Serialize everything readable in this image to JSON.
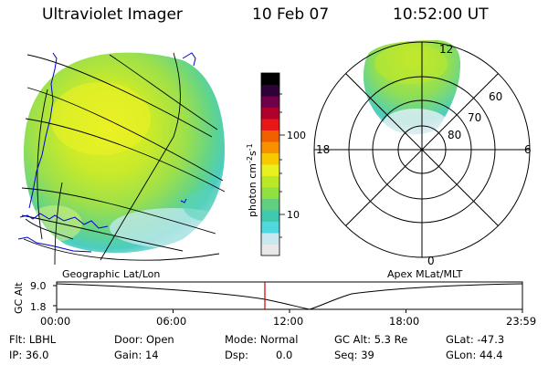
{
  "header": {
    "instrument": "Ultraviolet Imager",
    "date": "10 Feb 07",
    "time": "10:52:00 UT"
  },
  "colorbar": {
    "unit_label": "photon cm",
    "unit_exp_1": "-2",
    "unit_s": "s",
    "unit_exp_2": "-1",
    "ticks": [
      "100",
      "10"
    ],
    "colors": [
      "#e8e8e8",
      "#c8e8f0",
      "#50d8e0",
      "#40c8b0",
      "#60d080",
      "#90e040",
      "#b8e828",
      "#e8f020",
      "#f8c800",
      "#f89000",
      "#f06000",
      "#e81818",
      "#b0002c",
      "#70004a",
      "#300038",
      "#000000"
    ]
  },
  "left_panel": {
    "label": "Geographic Lat/Lon"
  },
  "right_panel": {
    "label": "Apex MLat/MLT",
    "mlt_labels": {
      "top": "12",
      "left": "18",
      "right": "6",
      "bottom": "0"
    },
    "mlat_labels": [
      "60",
      "70",
      "80"
    ]
  },
  "altitude_plot": {
    "ylabel": "GC Alt",
    "yticks": [
      "9.0",
      "1.8"
    ],
    "xticks": [
      "00:00",
      "06:00",
      "12:00",
      "18:00",
      "23:59"
    ],
    "current_time_color": "#cc0000"
  },
  "info": {
    "filter": "Flt: LBHL",
    "ip": "IP: 36.0",
    "door": "Door: Open",
    "gain": "Gain: 14",
    "mode": "Mode: Normal",
    "dsp_label": "Dsp:",
    "dsp_value": "0.0",
    "gc_alt": "GC Alt: 5.3 Re",
    "seq": "Seq: 39",
    "glat": "GLat: -47.3",
    "glon": "GLon:  44.4"
  }
}
